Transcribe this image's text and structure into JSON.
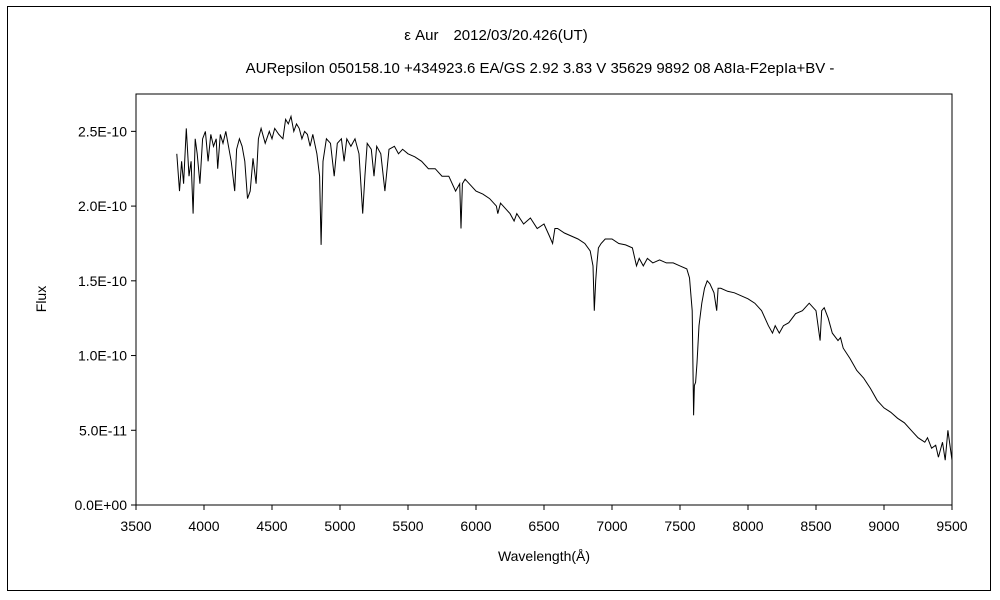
{
  "chart_data": {
    "type": "line",
    "title": "ε Aur　2012/03/20.426(UT)",
    "subtitle": "AURepsilon 050158.10 +434923.6 EA/GS 2.92 3.83 V 35629 9892 08 A8Ia-F2epIa+BV -",
    "xlabel": "Wavelength(Å)",
    "ylabel": "Flux",
    "xlim": [
      3500,
      9500
    ],
    "ylim": [
      0,
      2.75e-10
    ],
    "grid": false,
    "legend": "none",
    "line_color": "#000000",
    "x_ticks": [
      3500,
      4000,
      4500,
      5000,
      5500,
      6000,
      6500,
      7000,
      7500,
      8000,
      8500,
      9000,
      9500
    ],
    "x_tick_labels": [
      "3500",
      "4000",
      "4500",
      "5000",
      "5500",
      "6000",
      "6500",
      "7000",
      "7500",
      "8000",
      "8500",
      "9000",
      "9500"
    ],
    "y_ticks": [
      0,
      5e-11,
      1e-10,
      1.5e-10,
      2e-10,
      2.5e-10
    ],
    "y_tick_labels": [
      "0.0E+00",
      "5.0E-11",
      "1.0E-10",
      "1.5E-10",
      "2.0E-10",
      "2.5E-10"
    ],
    "series": [
      {
        "x": [
          3800,
          3820,
          3835,
          3850,
          3870,
          3890,
          3905,
          3920,
          3935,
          3950,
          3970,
          3990,
          4010,
          4030,
          4050,
          4070,
          4090,
          4101,
          4120,
          4140,
          4160,
          4180,
          4200,
          4226,
          4240,
          4260,
          4280,
          4300,
          4320,
          4340,
          4360,
          4383,
          4400,
          4420,
          4450,
          4480,
          4500,
          4520,
          4550,
          4580,
          4600,
          4620,
          4640,
          4660,
          4680,
          4700,
          4720,
          4740,
          4760,
          4780,
          4800,
          4830,
          4850,
          4861,
          4875,
          4900,
          4930,
          4957,
          4980,
          5010,
          5030,
          5050,
          5080,
          5110,
          5140,
          5167,
          5183,
          5200,
          5230,
          5250,
          5270,
          5300,
          5330,
          5360,
          5400,
          5430,
          5460,
          5500,
          5550,
          5600,
          5650,
          5700,
          5750,
          5800,
          5850,
          5880,
          5890,
          5900,
          5920,
          5950,
          6000,
          6050,
          6100,
          6150,
          6160,
          6180,
          6200,
          6250,
          6280,
          6300,
          6350,
          6400,
          6450,
          6500,
          6540,
          6563,
          6580,
          6600,
          6650,
          6700,
          6750,
          6800,
          6840,
          6860,
          6870,
          6880,
          6890,
          6900,
          6920,
          6950,
          7000,
          7050,
          7100,
          7150,
          7180,
          7200,
          7230,
          7260,
          7300,
          7350,
          7400,
          7450,
          7500,
          7550,
          7570,
          7590,
          7600,
          7606,
          7615,
          7625,
          7640,
          7660,
          7680,
          7700,
          7720,
          7750,
          7770,
          7780,
          7800,
          7850,
          7900,
          7950,
          8000,
          8050,
          8100,
          8150,
          8180,
          8200,
          8230,
          8260,
          8300,
          8350,
          8400,
          8450,
          8500,
          8530,
          8542,
          8560,
          8590,
          8620,
          8662,
          8680,
          8700,
          8750,
          8800,
          8850,
          8900,
          8950,
          9000,
          9050,
          9100,
          9150,
          9200,
          9250,
          9300,
          9320,
          9350,
          9380,
          9400,
          9430,
          9450,
          9470,
          9500
        ],
        "y": [
          2.35e-10,
          2.1e-10,
          2.3e-10,
          2.15e-10,
          2.52e-10,
          2.2e-10,
          2.3e-10,
          1.95e-10,
          2.45e-10,
          2.35e-10,
          2.15e-10,
          2.45e-10,
          2.5e-10,
          2.3e-10,
          2.48e-10,
          2.4e-10,
          2.45e-10,
          2.25e-10,
          2.48e-10,
          2.42e-10,
          2.5e-10,
          2.4e-10,
          2.3e-10,
          2.1e-10,
          2.38e-10,
          2.45e-10,
          2.4e-10,
          2.3e-10,
          2.05e-10,
          2.1e-10,
          2.32e-10,
          2.15e-10,
          2.45e-10,
          2.52e-10,
          2.42e-10,
          2.5e-10,
          2.45e-10,
          2.52e-10,
          2.48e-10,
          2.45e-10,
          2.58e-10,
          2.55e-10,
          2.6e-10,
          2.5e-10,
          2.55e-10,
          2.52e-10,
          2.45e-10,
          2.5e-10,
          2.48e-10,
          2.4e-10,
          2.48e-10,
          2.35e-10,
          2.2e-10,
          1.74e-10,
          2.3e-10,
          2.45e-10,
          2.42e-10,
          2.2e-10,
          2.42e-10,
          2.45e-10,
          2.3e-10,
          2.45e-10,
          2.4e-10,
          2.45e-10,
          2.35e-10,
          1.95e-10,
          2.2e-10,
          2.42e-10,
          2.38e-10,
          2.2e-10,
          2.4e-10,
          2.35e-10,
          2.1e-10,
          2.38e-10,
          2.4e-10,
          2.35e-10,
          2.38e-10,
          2.35e-10,
          2.33e-10,
          2.3e-10,
          2.25e-10,
          2.25e-10,
          2.2e-10,
          2.2e-10,
          2.1e-10,
          2.15e-10,
          1.85e-10,
          2.15e-10,
          2.18e-10,
          2.15e-10,
          2.1e-10,
          2.08e-10,
          2.05e-10,
          2e-10,
          1.95e-10,
          2.02e-10,
          2e-10,
          1.95e-10,
          1.9e-10,
          1.95e-10,
          1.88e-10,
          1.92e-10,
          1.85e-10,
          1.88e-10,
          1.8e-10,
          1.75e-10,
          1.85e-10,
          1.85e-10,
          1.82e-10,
          1.8e-10,
          1.78e-10,
          1.75e-10,
          1.7e-10,
          1.6e-10,
          1.3e-10,
          1.5e-10,
          1.62e-10,
          1.72e-10,
          1.75e-10,
          1.78e-10,
          1.78e-10,
          1.75e-10,
          1.74e-10,
          1.72e-10,
          1.6e-10,
          1.65e-10,
          1.6e-10,
          1.65e-10,
          1.62e-10,
          1.64e-10,
          1.62e-10,
          1.62e-10,
          1.6e-10,
          1.58e-10,
          1.52e-10,
          1.3e-10,
          6e-11,
          8e-11,
          8.2e-11,
          9.5e-11,
          1.2e-10,
          1.35e-10,
          1.45e-10,
          1.5e-10,
          1.48e-10,
          1.42e-10,
          1.3e-10,
          1.45e-10,
          1.45e-10,
          1.43e-10,
          1.42e-10,
          1.4e-10,
          1.38e-10,
          1.35e-10,
          1.3e-10,
          1.2e-10,
          1.15e-10,
          1.2e-10,
          1.15e-10,
          1.2e-10,
          1.22e-10,
          1.28e-10,
          1.3e-10,
          1.35e-10,
          1.3e-10,
          1.1e-10,
          1.3e-10,
          1.32e-10,
          1.25e-10,
          1.15e-10,
          1.1e-10,
          1.12e-10,
          1.05e-10,
          9.8e-11,
          9e-11,
          8.5e-11,
          7.8e-11,
          7e-11,
          6.5e-11,
          6.2e-11,
          5.8e-11,
          5.5e-11,
          5e-11,
          4.5e-11,
          4.2e-11,
          4.5e-11,
          3.8e-11,
          4e-11,
          3.2e-11,
          4.2e-11,
          3e-11,
          5e-11,
          3e-11
        ]
      }
    ]
  }
}
